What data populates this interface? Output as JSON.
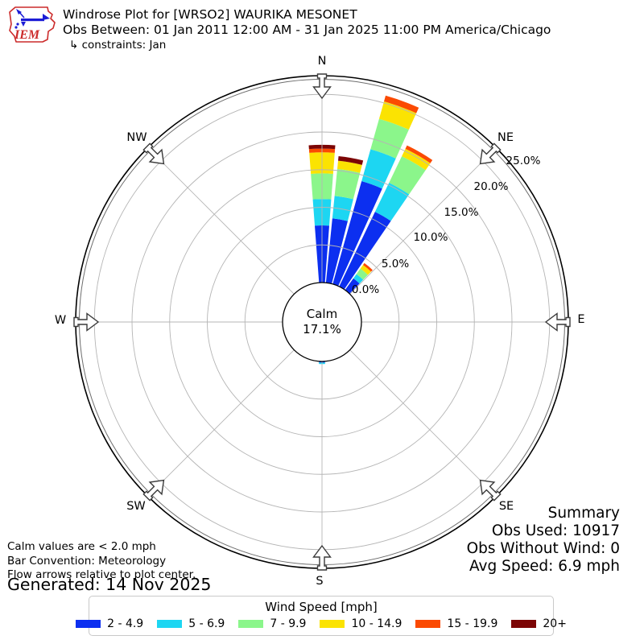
{
  "header": {
    "title": "Windrose Plot for [WRSO2] WAURIKA MESONET",
    "subtitle": "Obs Between: 01 Jan 2011 12:00 AM - 31 Jan 2025 11:00 PM America/Chicago",
    "constraints": "↳ constraints: Jan",
    "logo_text": "IEM"
  },
  "plot": {
    "compass": {
      "n": "N",
      "ne": "NE",
      "e": "E",
      "se": "SE",
      "s": "S",
      "sw": "SW",
      "w": "W",
      "nw": "NW"
    },
    "ring_labels": [
      "0.0%",
      "5.0%",
      "10.0%",
      "15.0%",
      "20.0%",
      "25.0%"
    ],
    "calm": {
      "line1": "Calm",
      "line2": "17.1%"
    }
  },
  "summary": {
    "title": "Summary",
    "obs_used": "Obs Used: 10917",
    "obs_without_wind": "Obs Without Wind: 0",
    "avg_speed": "Avg Speed: 6.9 mph"
  },
  "notes": {
    "calm": "Calm values are < 2.0 mph",
    "convention": "Bar Convention: Meteorology",
    "arrows": "Flow arrows relative to plot center."
  },
  "generated": "Generated: 14 Nov 2025",
  "legend": {
    "title": "Wind Speed [mph]",
    "items": [
      {
        "label": "2 - 4.9"
      },
      {
        "label": "5 - 6.9"
      },
      {
        "label": "7 - 9.9"
      },
      {
        "label": "10 - 14.9"
      },
      {
        "label": "15 - 19.9"
      },
      {
        "label": "20+"
      }
    ]
  },
  "chart_data": {
    "type": "windrose",
    "station": "[WRSO2] WAURIKA MESONET",
    "units": "mph",
    "calm_percent": 17.1,
    "calm_threshold_mph": 2.0,
    "obs_used": 10917,
    "obs_without_wind": 0,
    "avg_speed_mph": 6.9,
    "ring_percents": [
      0,
      5,
      10,
      15,
      20,
      25
    ],
    "rmax_percent": 27.5,
    "petal_width_deg": 8.6,
    "bar_convention": "Meteorology",
    "speed_bins": [
      {
        "label": "2 - 4.9",
        "color": "#0c2ff0"
      },
      {
        "label": "5 - 6.9",
        "color": "#1dd6f2"
      },
      {
        "label": "7 - 9.9",
        "color": "#8bf68b"
      },
      {
        "label": "10 - 14.9",
        "color": "#fbe302"
      },
      {
        "label": "15 - 19.9",
        "color": "#fb4a02"
      },
      {
        "label": "20+",
        "color": "#7c0505"
      }
    ],
    "petals": [
      {
        "dir_deg": 0,
        "segments_pct": [
          7.6,
          3.5,
          3.4,
          2.8,
          0.5,
          0.5
        ]
      },
      {
        "dir_deg": 10,
        "segments_pct": [
          8.6,
          3.0,
          3.6,
          1.1,
          0.0,
          0.6
        ]
      },
      {
        "dir_deg": 20,
        "segments_pct": [
          14.2,
          4.4,
          4.2,
          2.4,
          0.8,
          0.0
        ]
      },
      {
        "dir_deg": 30,
        "segments_pct": [
          11.0,
          4.3,
          3.9,
          1.1,
          0.5,
          0.0
        ]
      },
      {
        "dir_deg": 40,
        "segments_pct": [
          1.9,
          0.7,
          0.9,
          0.6,
          0.3,
          0.0
        ]
      },
      {
        "dir_deg": 180,
        "segments_pct": [
          0.15,
          0.2,
          0.0,
          0.0,
          0.0,
          0.0
        ]
      }
    ]
  }
}
